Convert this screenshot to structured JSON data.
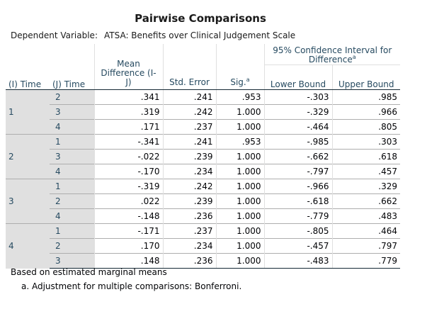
{
  "title": "Pairwise Comparisons",
  "dependent_variable_label": "Dependent Variable:",
  "dependent_variable_value": "ATSA: Benefits over Clinical Judgement Scale",
  "headers": {
    "i_time": "(I) Time",
    "j_time": "(J) Time",
    "mean_diff_lines": [
      "Mean",
      "Difference (I-",
      "J)"
    ],
    "std_error": "Std. Error",
    "sig": "Sig.",
    "sig_sup": "a",
    "ci_lines": [
      "95% Confidence Interval for",
      "Difference"
    ],
    "ci_sup": "a",
    "lower": "Lower Bound",
    "upper": "Upper Bound"
  },
  "groups": [
    {
      "i": "1",
      "rows": [
        {
          "j": "2",
          "md": ".341",
          "se": ".241",
          "sig": ".953",
          "lb": "-.303",
          "ub": ".985"
        },
        {
          "j": "3",
          "md": ".319",
          "se": ".242",
          "sig": "1.000",
          "lb": "-.329",
          "ub": ".966"
        },
        {
          "j": "4",
          "md": ".171",
          "se": ".237",
          "sig": "1.000",
          "lb": "-.464",
          "ub": ".805"
        }
      ]
    },
    {
      "i": "2",
      "rows": [
        {
          "j": "1",
          "md": "-.341",
          "se": ".241",
          "sig": ".953",
          "lb": "-.985",
          "ub": ".303"
        },
        {
          "j": "3",
          "md": "-.022",
          "se": ".239",
          "sig": "1.000",
          "lb": "-.662",
          "ub": ".618"
        },
        {
          "j": "4",
          "md": "-.170",
          "se": ".234",
          "sig": "1.000",
          "lb": "-.797",
          "ub": ".457"
        }
      ]
    },
    {
      "i": "3",
      "rows": [
        {
          "j": "1",
          "md": "-.319",
          "se": ".242",
          "sig": "1.000",
          "lb": "-.966",
          "ub": ".329"
        },
        {
          "j": "2",
          "md": ".022",
          "se": ".239",
          "sig": "1.000",
          "lb": "-.618",
          "ub": ".662"
        },
        {
          "j": "4",
          "md": "-.148",
          "se": ".236",
          "sig": "1.000",
          "lb": "-.779",
          "ub": ".483"
        }
      ]
    },
    {
      "i": "4",
      "rows": [
        {
          "j": "1",
          "md": "-.171",
          "se": ".237",
          "sig": "1.000",
          "lb": "-.805",
          "ub": ".464"
        },
        {
          "j": "2",
          "md": ".170",
          "se": ".234",
          "sig": "1.000",
          "lb": "-.457",
          "ub": ".797"
        },
        {
          "j": "3",
          "md": ".148",
          "se": ".236",
          "sig": "1.000",
          "lb": "-.483",
          "ub": ".779"
        }
      ]
    }
  ],
  "footnotes": {
    "basis": "Based on estimated marginal means",
    "adjustment": "a. Adjustment for multiple comparisons: Bonferroni."
  }
}
